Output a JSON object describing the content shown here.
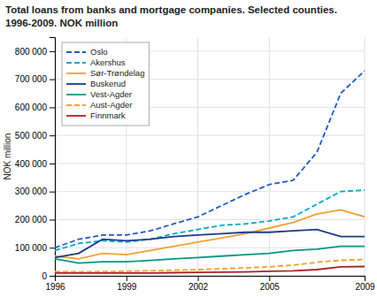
{
  "chart_data": {
    "type": "line",
    "title": "Total loans from banks and mortgage companies. Selected counties.",
    "subtitle": "1996-2009. NOK million",
    "ylabel": "NOK million",
    "x": [
      1996,
      1997,
      1998,
      1999,
      2000,
      2001,
      2002,
      2003,
      2004,
      2005,
      2006,
      2007,
      2008,
      2009
    ],
    "series": [
      {
        "name": "Oslo",
        "color": "#1f5bc4",
        "line_style": "dashed",
        "values": [
          100000,
          130000,
          145000,
          145000,
          160000,
          185000,
          210000,
          250000,
          290000,
          325000,
          340000,
          440000,
          650000,
          730000
        ]
      },
      {
        "name": "Akershus",
        "color": "#00aacc",
        "line_style": "dashed",
        "values": [
          90000,
          115000,
          125000,
          120000,
          130000,
          150000,
          165000,
          180000,
          185000,
          195000,
          210000,
          255000,
          300000,
          305000
        ]
      },
      {
        "name": "Sør-Trøndelag",
        "color": "#f5a030",
        "line_style": "solid",
        "values": [
          70000,
          60000,
          80000,
          75000,
          90000,
          105000,
          120000,
          135000,
          150000,
          170000,
          190000,
          220000,
          235000,
          210000
        ]
      },
      {
        "name": "Buskerud",
        "color": "#1a3a8c",
        "line_style": "solid",
        "values": [
          65000,
          80000,
          130000,
          125000,
          130000,
          140000,
          145000,
          150000,
          155000,
          155000,
          160000,
          165000,
          140000,
          140000
        ]
      },
      {
        "name": "Vest-Agder",
        "color": "#009980",
        "line_style": "solid",
        "values": [
          60000,
          45000,
          50000,
          50000,
          55000,
          60000,
          65000,
          70000,
          75000,
          80000,
          90000,
          95000,
          105000,
          105000
        ]
      },
      {
        "name": "Aust-Agder",
        "color": "#f5a030",
        "line_style": "dashed",
        "values": [
          15000,
          14000,
          15000,
          16000,
          18000,
          20000,
          22000,
          25000,
          28000,
          32000,
          38000,
          48000,
          55000,
          58000
        ]
      },
      {
        "name": "Finnmark",
        "color": "#aa2222",
        "line_style": "solid",
        "values": [
          10000,
          10000,
          10000,
          10000,
          10000,
          11000,
          12000,
          13000,
          14000,
          16000,
          18000,
          22000,
          32000,
          33000
        ]
      }
    ],
    "xlim": [
      1996,
      2009
    ],
    "xticks": [
      1996,
      1999,
      2002,
      2005,
      2009
    ],
    "ylim": [
      0,
      850000
    ],
    "yticks": [
      0,
      {
        "value": 100000,
        "label": "100 000"
      },
      {
        "value": 200000,
        "label": "200 000"
      },
      {
        "value": 300000,
        "label": "300 000"
      },
      {
        "value": 400000,
        "label": "400 000"
      },
      {
        "value": 500000,
        "label": "500 000"
      },
      {
        "value": 600000,
        "label": "600 000"
      },
      {
        "value": 700000,
        "label": "700 000"
      },
      {
        "value": 800000,
        "label": "800 000"
      }
    ],
    "grid": true,
    "legend": "upper left"
  }
}
